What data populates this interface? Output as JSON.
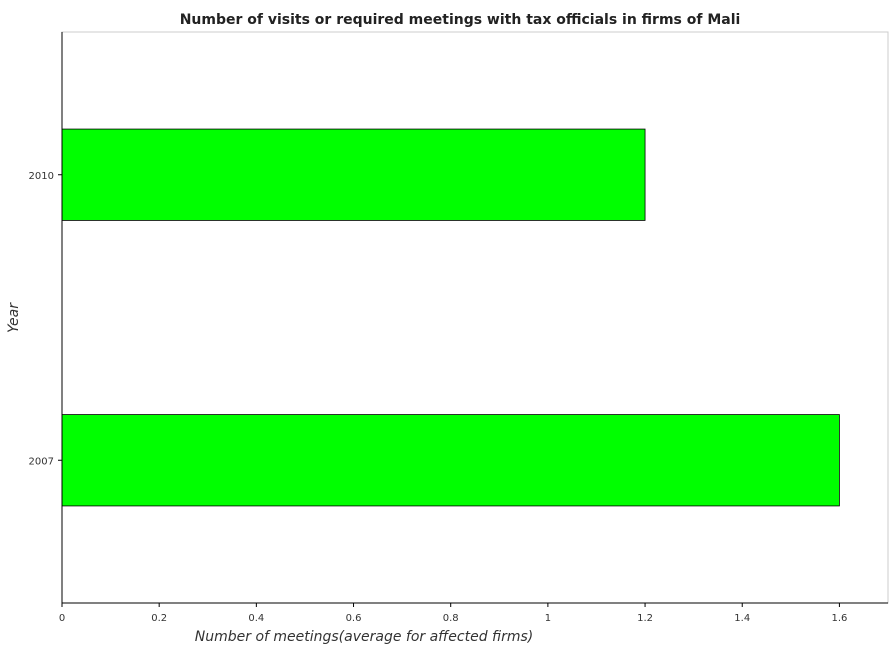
{
  "chart_data": {
    "type": "bar",
    "orientation": "horizontal",
    "title": "Number of visits or required meetings with tax officials in firms of Mali",
    "xlabel": "Number of meetings(average for affected firms)",
    "ylabel": "Year",
    "categories": [
      "2010",
      "2007"
    ],
    "values": [
      1.2,
      1.6
    ],
    "xlim": [
      0,
      1.7
    ],
    "xticks": [
      "0",
      "0.2",
      "0.4",
      "0.6",
      "0.8",
      "1",
      "1.2",
      "1.4",
      "1.6"
    ],
    "grid": false,
    "legend": "none",
    "bar_color": "#00ff00"
  }
}
